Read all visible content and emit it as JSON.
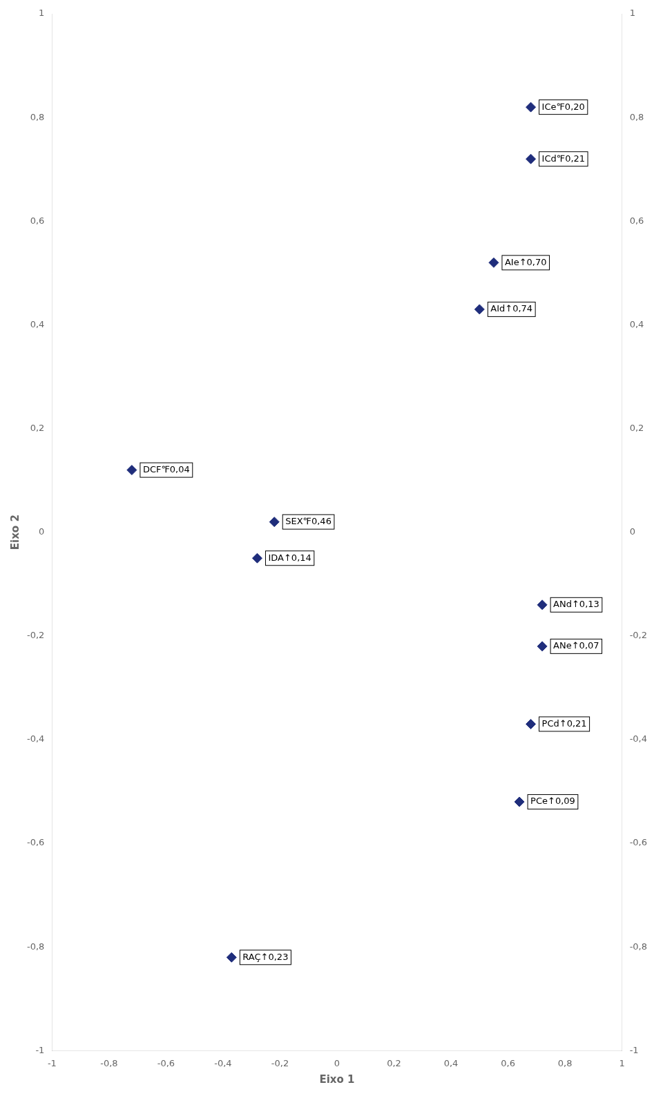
{
  "chart_data": {
    "type": "scatter",
    "xlabel": "Eixo 1",
    "ylabel": "Eixo 2",
    "xlim": [
      -1,
      1
    ],
    "ylim": [
      -1,
      1
    ],
    "y2lim": [
      -1,
      1
    ],
    "xticks": [
      -1,
      {
        "value": -0.8,
        "label": "-0,8"
      },
      {
        "value": -0.6,
        "label": "-0,6"
      },
      {
        "value": -0.4,
        "label": "-0,4"
      },
      {
        "value": -0.2,
        "label": "-0,2"
      },
      0,
      {
        "value": 0.2,
        "label": "0,2"
      },
      {
        "value": 0.4,
        "label": "0,4"
      },
      {
        "value": 0.6,
        "label": "0,6"
      },
      {
        "value": 0.8,
        "label": "0,8"
      },
      1
    ],
    "yticks": [
      -1,
      {
        "value": -0.8,
        "label": "-0,8"
      },
      {
        "value": -0.6,
        "label": "-0,6"
      },
      {
        "value": -0.4,
        "label": "-0,4"
      },
      {
        "value": -0.2,
        "label": "-0,2"
      },
      0,
      {
        "value": 0.2,
        "label": "0,2"
      },
      {
        "value": 0.4,
        "label": "0,4"
      },
      {
        "value": 0.6,
        "label": "0,6"
      },
      {
        "value": 0.8,
        "label": "0,8"
      },
      1
    ],
    "y2ticks": [
      -1,
      {
        "value": -0.8,
        "label": "-0,8"
      },
      {
        "value": -0.6,
        "label": "-0,6"
      },
      {
        "value": -0.4,
        "label": "-0,4"
      },
      {
        "value": -0.2,
        "label": "-0,2"
      },
      0,
      {
        "value": 0.2,
        "label": "0,2"
      },
      {
        "value": 0.4,
        "label": "0,4"
      },
      {
        "value": 0.6,
        "label": "0,6"
      },
      {
        "value": 0.8,
        "label": "0,8"
      },
      1
    ],
    "x": [
      0.55,
      0.5,
      -0.72,
      -0.22,
      -0.28,
      0.68,
      0.68,
      0.72,
      0.72,
      0.68,
      0.64,
      -0.37
    ],
    "values": [
      0.52,
      0.43,
      0.12,
      0.02,
      -0.05,
      0.82,
      0.72,
      -0.14,
      -0.22,
      -0.37,
      -0.52,
      -0.82
    ],
    "labels": [
      "AIe↑0,70",
      "AId↑0,74",
      "DCF℉0,04",
      "SEX℉0,46",
      "IDA↑0,14",
      "ICe℉0,20",
      "ICd℉0,21",
      "ANd↑0,13",
      "ANe↑0,07",
      "PCd↑0,21",
      "PCe↑0,09",
      "RAÇ↑0,23"
    ],
    "color": "#1f2d7b",
    "marker": "diamond",
    "grid": false
  }
}
